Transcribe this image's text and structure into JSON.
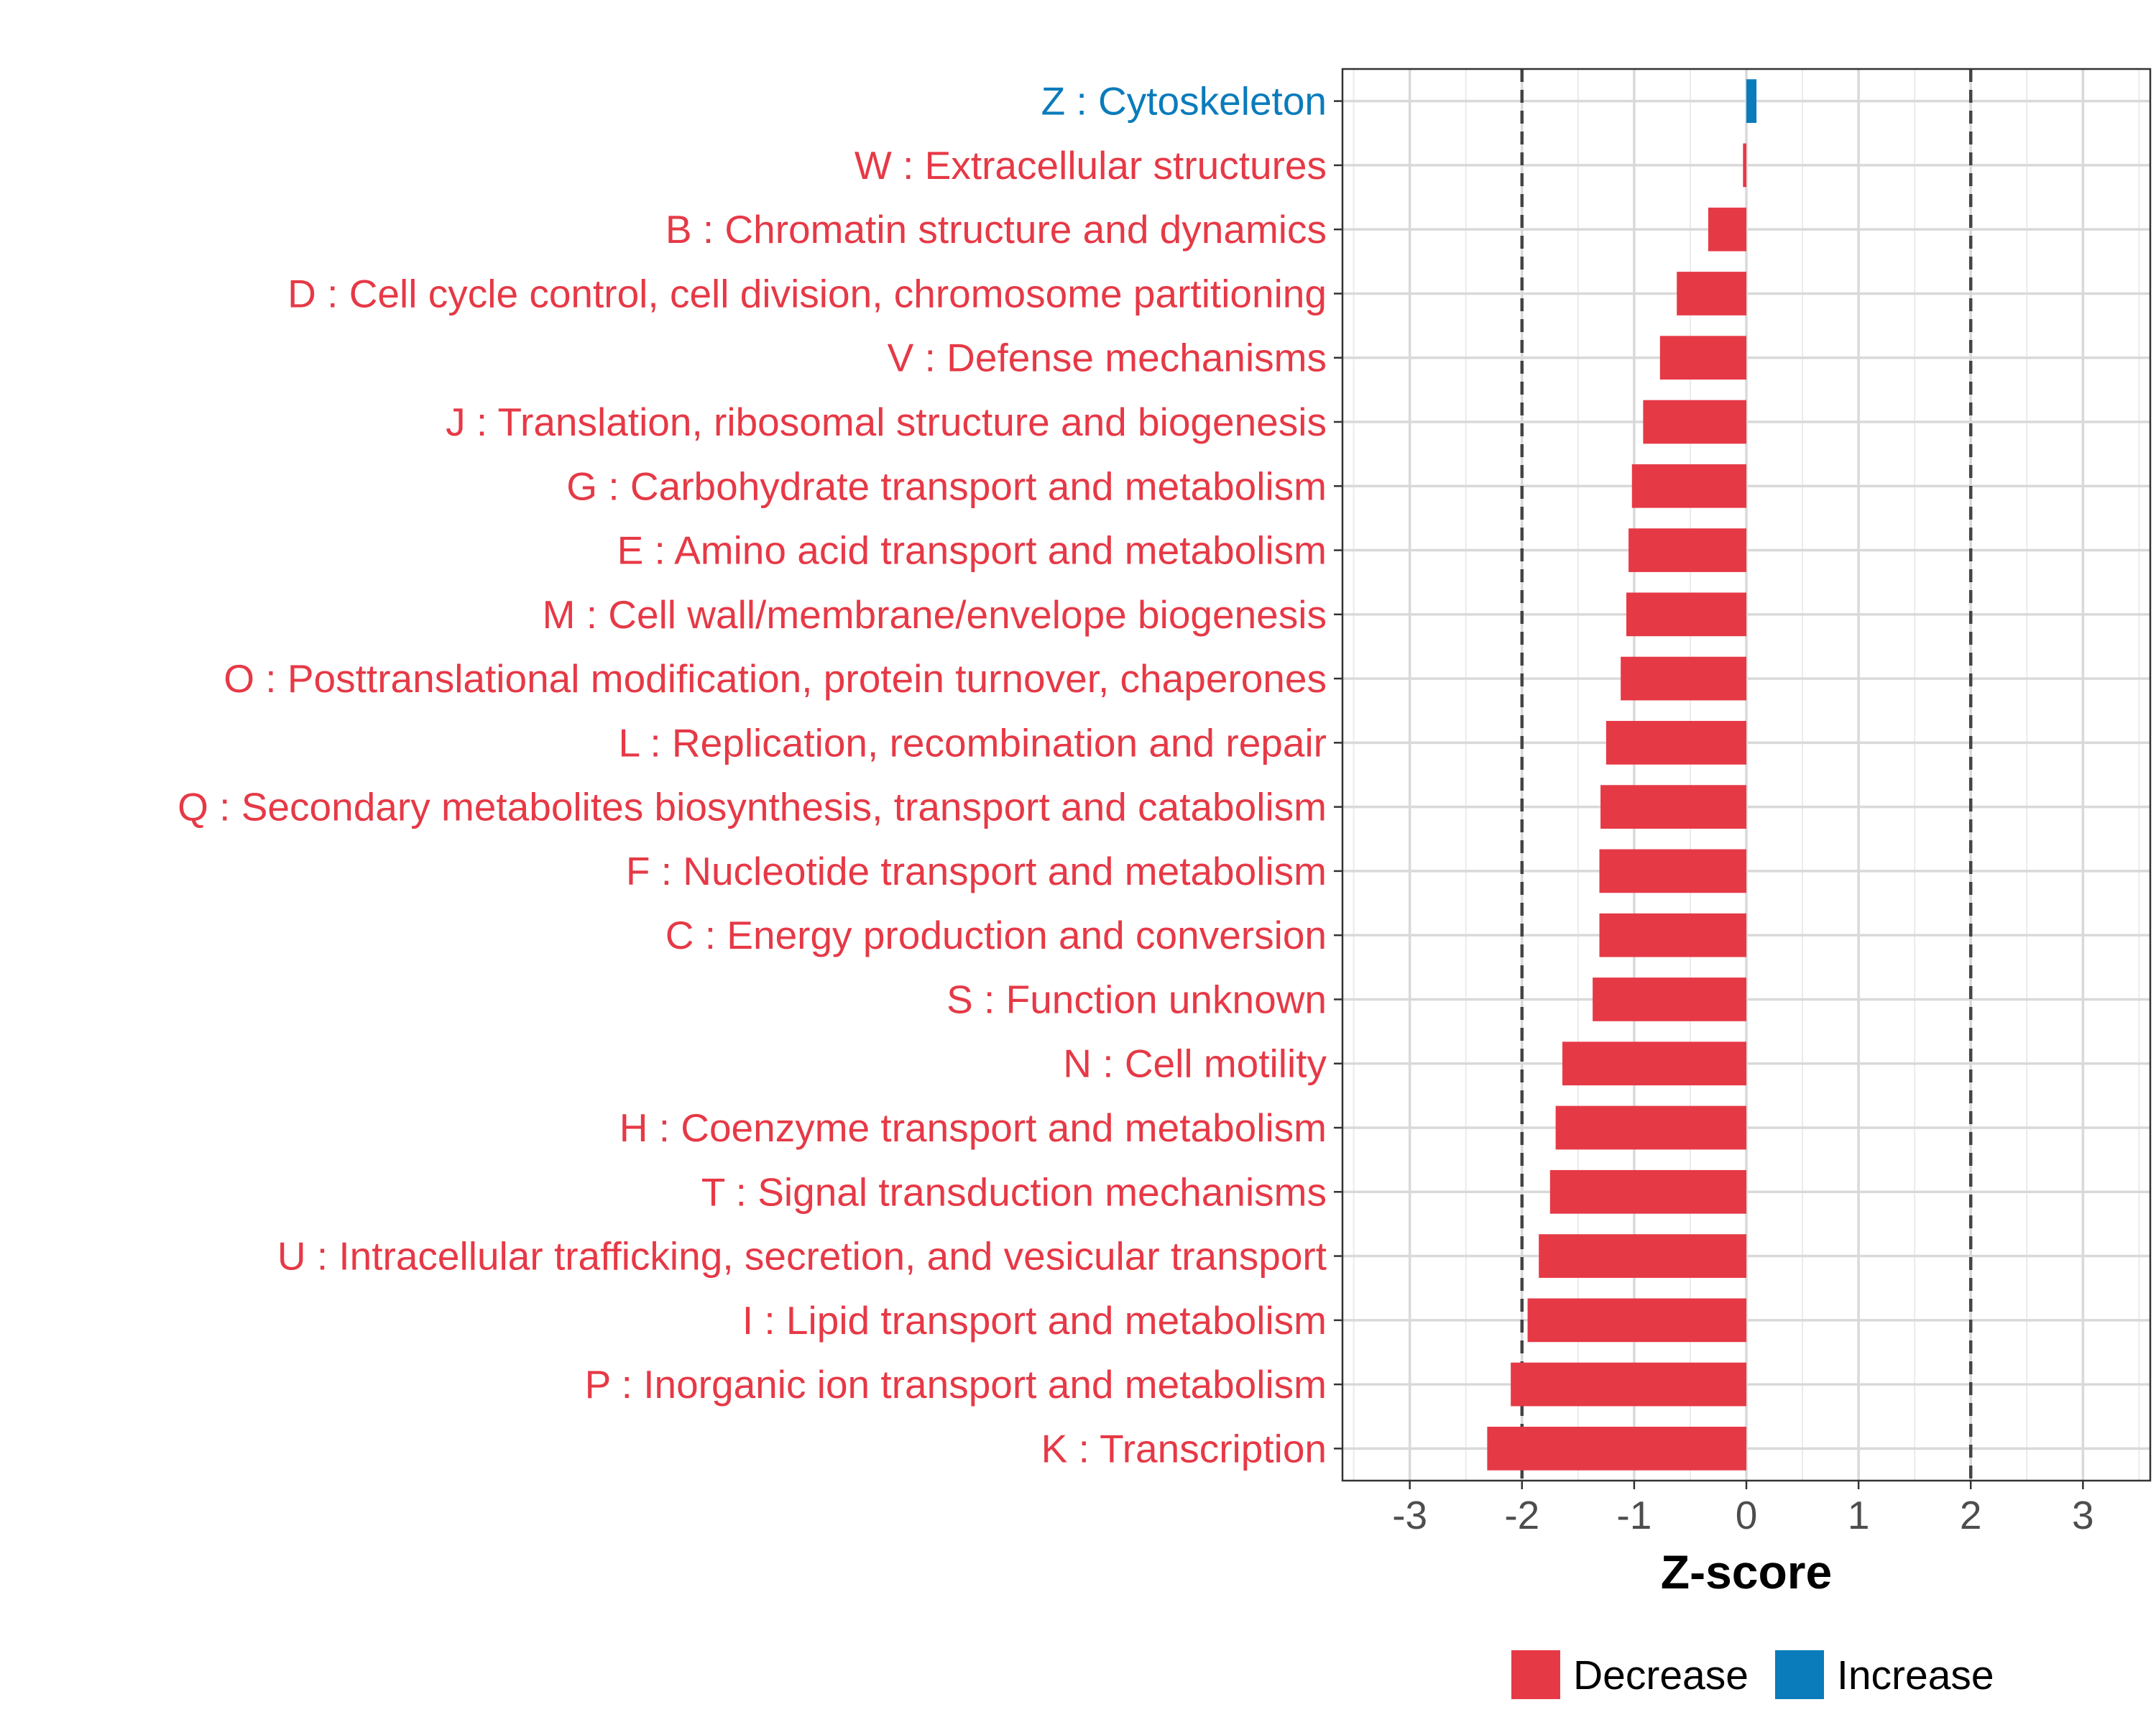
{
  "chart_data": {
    "type": "bar",
    "orientation": "horizontal",
    "title": "",
    "xlabel": "Z-score",
    "ylabel": "",
    "xlim": [
      -3.6,
      3.6
    ],
    "xticks": [
      -3,
      -2,
      -1,
      0,
      1,
      2,
      3
    ],
    "xtick_labels": [
      "-3",
      "-2",
      "-1",
      "0",
      "1",
      "2",
      "3"
    ],
    "reference_lines": [
      -2,
      2
    ],
    "grid": true,
    "legend_position": "bottom",
    "colors": {
      "Decrease": "#e63946",
      "Increase": "#0a7bbb"
    },
    "categories": [
      "Z : Cytoskeleton",
      "W : Extracellular structures",
      "B : Chromatin structure and dynamics",
      "D : Cell cycle control, cell division, chromosome partitioning",
      "V : Defense mechanisms",
      "J : Translation, ribosomal structure and biogenesis",
      "G : Carbohydrate transport and metabolism",
      "E : Amino acid transport and metabolism",
      "M : Cell wall/membrane/envelope biogenesis",
      "O : Posttranslational modification, protein turnover, chaperones",
      "L : Replication, recombination and repair",
      "Q : Secondary metabolites biosynthesis, transport and catabolism",
      "F : Nucleotide transport and metabolism",
      "C : Energy production and conversion",
      "S : Function unknown",
      "N : Cell motility",
      "H : Coenzyme transport and metabolism",
      "T : Signal transduction mechanisms",
      "U : Intracellular trafficking, secretion, and vesicular transport",
      "I : Lipid transport and metabolism",
      "P : Inorganic ion transport and metabolism",
      "K : Transcription"
    ],
    "values": [
      0.09,
      -0.03,
      -0.34,
      -0.62,
      -0.77,
      -0.92,
      -1.02,
      -1.05,
      -1.07,
      -1.12,
      -1.25,
      -1.3,
      -1.31,
      -1.31,
      -1.37,
      -1.64,
      -1.7,
      -1.75,
      -1.85,
      -1.95,
      -2.1,
      -2.31
    ],
    "directions": [
      "Increase",
      "Decrease",
      "Decrease",
      "Decrease",
      "Decrease",
      "Decrease",
      "Decrease",
      "Decrease",
      "Decrease",
      "Decrease",
      "Decrease",
      "Decrease",
      "Decrease",
      "Decrease",
      "Decrease",
      "Decrease",
      "Decrease",
      "Decrease",
      "Decrease",
      "Decrease",
      "Decrease",
      "Decrease"
    ],
    "legend": [
      {
        "label": "Decrease",
        "color": "#e63946"
      },
      {
        "label": "Increase",
        "color": "#0a7bbb"
      }
    ]
  }
}
